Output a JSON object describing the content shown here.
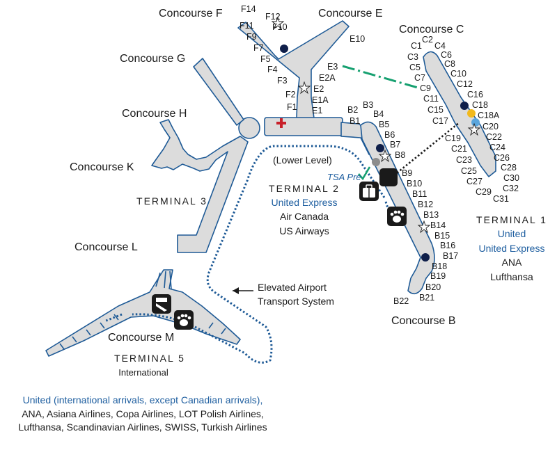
{
  "concourses": {
    "f": "Concourse F",
    "e": "Concourse E",
    "c": "Concourse C",
    "g": "Concourse G",
    "h": "Concourse H",
    "k": "Concourse K",
    "l": "Concourse L",
    "m": "Concourse M",
    "b": "Concourse B"
  },
  "gates": {
    "f": [
      "F14",
      "F12",
      "F11",
      "F10",
      "F9",
      "F7",
      "F5",
      "F4",
      "F3",
      "F2",
      "F1"
    ],
    "e": [
      "E10",
      "E3",
      "E2A",
      "E2",
      "E1A",
      "E1"
    ],
    "b": [
      "B2",
      "B3",
      "B1",
      "B4",
      "B5",
      "B6",
      "B7",
      "B8",
      "B9",
      "B10",
      "B11",
      "B12",
      "B13",
      "B14",
      "B15",
      "B16",
      "B17",
      "B18",
      "B19",
      "B20",
      "B21",
      "B22"
    ],
    "c": [
      "C2",
      "C1",
      "C4",
      "C3",
      "C6",
      "C5",
      "C8",
      "C7",
      "C10",
      "C9",
      "C12",
      "C11",
      "C16",
      "C15",
      "C18",
      "C18A",
      "C17",
      "C20",
      "C19",
      "C22",
      "C21",
      "C24",
      "C26",
      "C23",
      "C28",
      "C25",
      "C30",
      "C27",
      "C32",
      "C29",
      "C31"
    ]
  },
  "lower_level": "(Lower Level)",
  "tsa_pre": "TSA Pre",
  "terminal2": {
    "name": "TERMINAL 2",
    "lines": [
      "United Express",
      "Air Canada",
      "US Airways"
    ]
  },
  "terminal1": {
    "name": "TERMINAL 1",
    "lines": [
      "United",
      "United Express",
      "ANA",
      "Lufthansa"
    ]
  },
  "terminal3": {
    "name": "TERMINAL 3"
  },
  "terminal5": {
    "name": "TERMINAL 5",
    "sub": "International"
  },
  "elevated": [
    "Elevated Airport",
    "Transport System"
  ],
  "footer": {
    "line1": "United (international arrivals, except Canadian arrivals),",
    "line2": "ANA, Asiana Airlines, Copa Airlines, LOT Polish Airlines,",
    "line3": "Lufthansa, Scandinavian Airlines, SWISS, Turkish Airlines"
  },
  "colors": {
    "building_fill": "#dcdcdc",
    "building_stroke": "#1e5a96",
    "text_blue": "#1f5fa0",
    "transport_line": "#1e5a96",
    "walkway_green": "#16a070",
    "dot_navy": "#0f1f4a",
    "dot_yellow": "#f2b91c",
    "dot_lightblue": "#5aa5dc",
    "dot_grey": "#8c8c8c",
    "cross_red": "#c8202a"
  },
  "icons": [
    "star-icon",
    "medical-cross-icon",
    "tsa-check-icon",
    "luggage-icon",
    "pet-paw-icon",
    "customs-icon",
    "navy-dot-icon"
  ]
}
